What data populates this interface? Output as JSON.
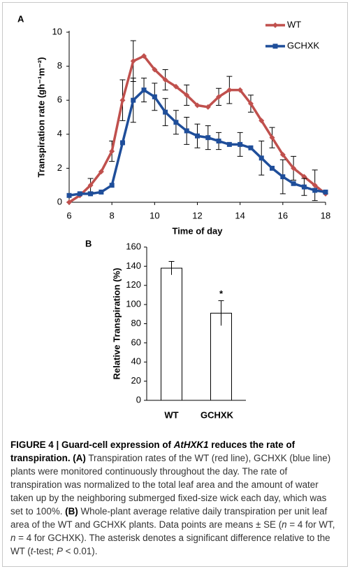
{
  "chart_data": [
    {
      "type": "line",
      "panel_label": "A",
      "x_label": "Time of day",
      "y_label": "Transpiration rate (gh⁻¹m⁻²)",
      "x": [
        6,
        6.5,
        7,
        7.5,
        8,
        8.5,
        9,
        9.5,
        10,
        10.5,
        11,
        11.5,
        12,
        12.5,
        13,
        13.5,
        14,
        14.5,
        15,
        15.5,
        16,
        16.5,
        17,
        17.5,
        18
      ],
      "xlim": [
        6,
        18
      ],
      "xticks": [
        6,
        8,
        10,
        12,
        14,
        16,
        18
      ],
      "ylim": [
        0,
        10
      ],
      "yticks": [
        0,
        2,
        4,
        6,
        8,
        10
      ],
      "legend": "upper right",
      "grid": false,
      "series": [
        {
          "name": "WT",
          "color": "#c0504d",
          "marker": "diamond",
          "values": [
            0,
            0.4,
            1.0,
            1.8,
            3.0,
            6.0,
            8.3,
            8.6,
            7.8,
            7.2,
            6.8,
            6.3,
            5.7,
            5.6,
            6.2,
            6.6,
            6.6,
            5.8,
            4.8,
            3.8,
            2.8,
            2.0,
            1.5,
            1.0,
            0.5
          ],
          "errors": [
            null,
            null,
            0.4,
            null,
            0.6,
            1.2,
            1.2,
            null,
            null,
            0.6,
            null,
            0.6,
            null,
            null,
            0.5,
            0.8,
            null,
            0.5,
            null,
            0.6,
            null,
            0.7,
            null,
            0.9,
            null
          ]
        },
        {
          "name": "GCHXK",
          "color": "#1f4e9a",
          "marker": "square",
          "values": [
            0.4,
            0.5,
            0.5,
            0.6,
            1.0,
            3.5,
            6.0,
            6.6,
            6.2,
            5.3,
            4.7,
            4.2,
            3.9,
            3.8,
            3.6,
            3.4,
            3.4,
            3.2,
            2.6,
            2.0,
            1.5,
            1.1,
            0.9,
            0.7,
            0.6
          ],
          "errors": [
            null,
            null,
            null,
            null,
            null,
            null,
            1.3,
            0.7,
            0.8,
            0.8,
            0.7,
            0.8,
            0.7,
            0.7,
            0.5,
            null,
            0.7,
            null,
            1.0,
            null,
            1.0,
            null,
            0.5,
            null,
            null
          ]
        }
      ]
    },
    {
      "type": "bar",
      "panel_label": "B",
      "y_label": "Relative Transpiration (%)",
      "categories": [
        "WT",
        "GCHXK"
      ],
      "values": [
        138,
        91
      ],
      "errors": [
        7,
        13
      ],
      "color": "#ffffff",
      "ylim": [
        0,
        160
      ],
      "yticks": [
        0,
        20,
        40,
        60,
        80,
        100,
        120,
        140,
        160
      ],
      "annotation": {
        "text": "*",
        "category": "GCHXK"
      }
    }
  ],
  "caption": {
    "runs": [
      {
        "text": "FIGURE 4 | Guard-cell expression of ",
        "style": "bold"
      },
      {
        "text": "AtHXK1",
        "style": "bold-italic"
      },
      {
        "text": " reduces the rate of transpiration. ",
        "style": "bold"
      },
      {
        "text": "(A)",
        "style": "bold"
      },
      {
        "text": " Transpiration rates of the WT (red line), GCHXK (blue line) plants were monitored continuously throughout the day. The rate of transpiration was normalized to the total leaf area and the amount of water taken up by the neighboring submerged fixed-size wick each day, which was set to 100%. ",
        "style": "normal"
      },
      {
        "text": "(B)",
        "style": "bold"
      },
      {
        "text": " Whole-plant average relative daily transpiration per unit leaf area of the WT and GCHXK plants. Data points are means ± SE (",
        "style": "normal"
      },
      {
        "text": "n",
        "style": "italic"
      },
      {
        "text": " = 4 for WT, ",
        "style": "normal"
      },
      {
        "text": "n",
        "style": "italic"
      },
      {
        "text": " = 4 for GCHXK). The asterisk denotes a significant difference relative to the WT (",
        "style": "normal"
      },
      {
        "text": "t",
        "style": "italic"
      },
      {
        "text": "-test; ",
        "style": "normal"
      },
      {
        "text": "P",
        "style": "italic"
      },
      {
        "text": " < 0.01).",
        "style": "normal"
      }
    ]
  }
}
